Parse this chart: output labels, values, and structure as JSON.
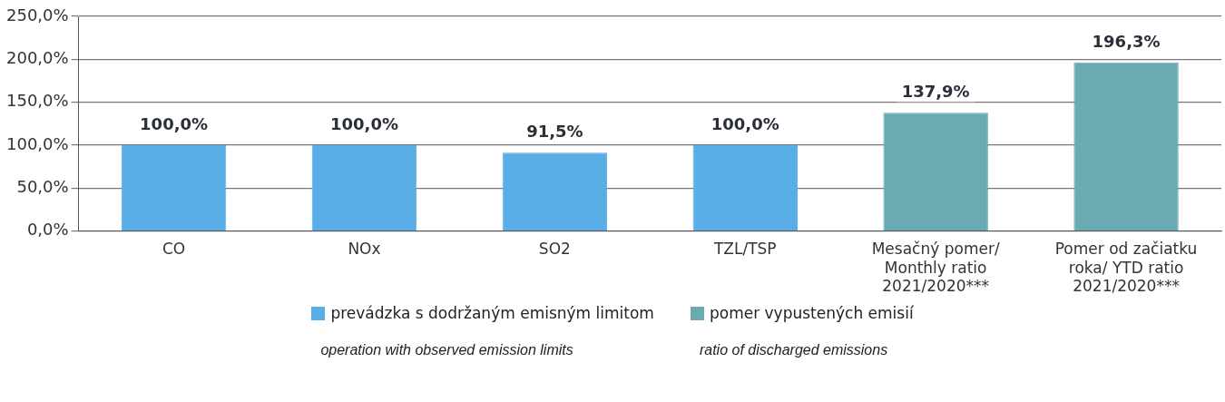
{
  "chart_data": {
    "type": "bar",
    "categories": [
      "CO",
      "NOx",
      "SO2",
      "TZL/TSP",
      "Mesačný pomer/\nMonthly ratio\n2021/2020***",
      "Pomer od začiatku\nroka/ YTD ratio\n2021/2020***"
    ],
    "series": [
      {
        "name": "prevádzka s dodržaným emisným limitom",
        "color": "#5aaee6",
        "values": [
          100,
          100,
          91.5,
          100,
          null,
          null
        ],
        "value_labels": [
          "100,0%",
          "100,0%",
          "91,5%",
          "100,0%",
          null,
          null
        ]
      },
      {
        "name": "pomer vypustených emisií",
        "color": "#6aabb3",
        "values": [
          null,
          null,
          null,
          null,
          137.9,
          196.3
        ],
        "value_labels": [
          null,
          null,
          null,
          null,
          "137,9%",
          "196,3%"
        ]
      }
    ],
    "ylim": [
      0,
      250
    ],
    "yticks": [
      {
        "value": 0,
        "label": "0,0%"
      },
      {
        "value": 50,
        "label": "50,0%"
      },
      {
        "value": 100,
        "label": "100,0%"
      },
      {
        "value": 150,
        "label": "150,0%"
      },
      {
        "value": 200,
        "label": "200,0%"
      },
      {
        "value": 250,
        "label": "250,0%"
      }
    ],
    "grid": "y",
    "legend": "bottom",
    "annotations": [
      "operation with observed emission limits",
      "ratio of discharged emissions"
    ]
  }
}
